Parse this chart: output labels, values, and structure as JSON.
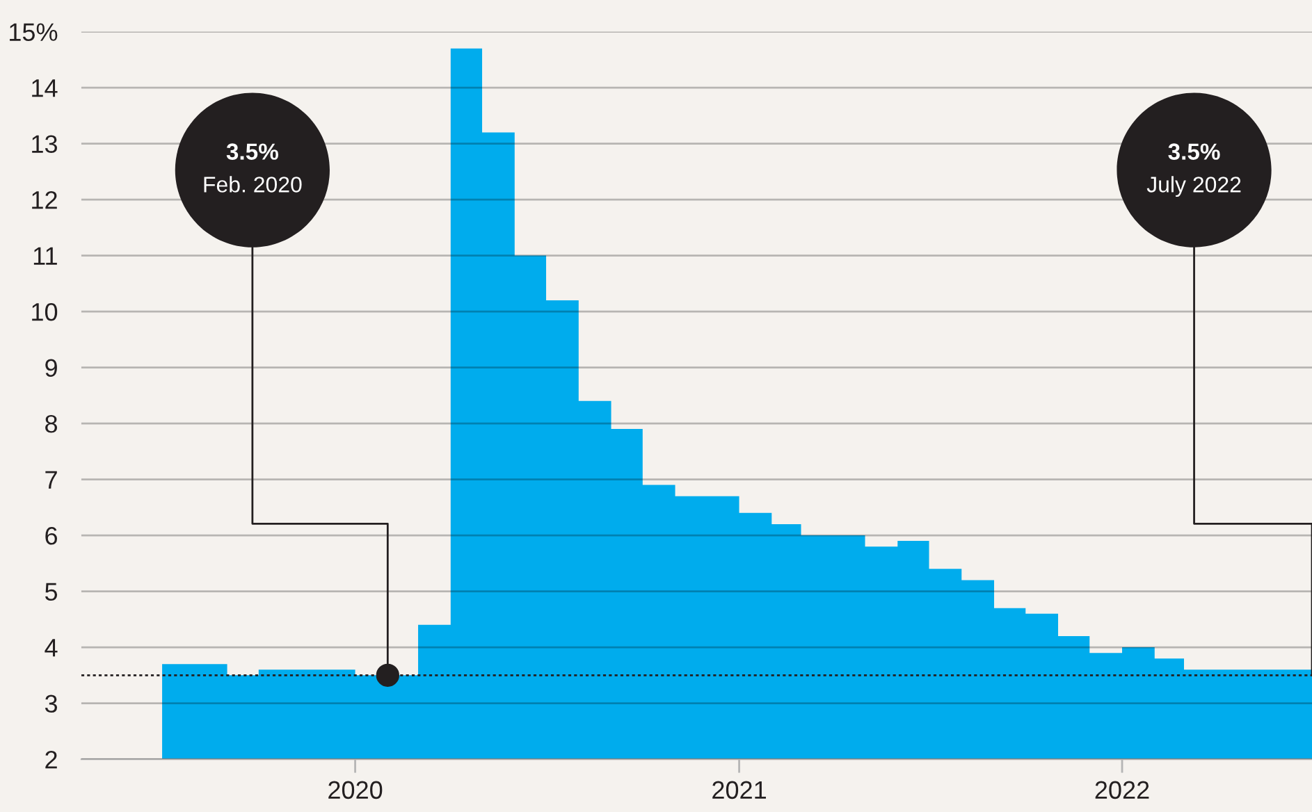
{
  "chart_data": {
    "type": "area",
    "x": [
      "2019-07",
      "2019-08",
      "2019-09",
      "2019-10",
      "2019-11",
      "2019-12",
      "2020-01",
      "2020-02",
      "2020-03",
      "2020-04",
      "2020-05",
      "2020-06",
      "2020-07",
      "2020-08",
      "2020-09",
      "2020-10",
      "2020-11",
      "2020-12",
      "2021-01",
      "2021-02",
      "2021-03",
      "2021-04",
      "2021-05",
      "2021-06",
      "2021-07",
      "2021-08",
      "2021-09",
      "2021-10",
      "2021-11",
      "2021-12",
      "2022-01",
      "2022-02",
      "2022-03",
      "2022-04",
      "2022-05",
      "2022-06",
      "2022-07"
    ],
    "values": [
      3.7,
      3.7,
      3.5,
      3.6,
      3.6,
      3.6,
      3.5,
      3.5,
      4.4,
      14.7,
      13.2,
      11.0,
      10.2,
      8.4,
      7.9,
      6.9,
      6.7,
      6.7,
      6.4,
      6.2,
      6.0,
      6.0,
      5.8,
      5.9,
      5.4,
      5.2,
      4.7,
      4.6,
      4.2,
      3.9,
      4.0,
      3.8,
      3.6,
      3.6,
      3.6,
      3.6,
      3.5
    ],
    "color": "#00aced",
    "xlim": [
      "2019-04-15",
      "2022-07-01"
    ],
    "xticks": [
      {
        "value": "2020-01-01",
        "label": "2020"
      },
      {
        "value": "2021-01-01",
        "label": "2021"
      },
      {
        "value": "2022-01-01",
        "label": "2022"
      }
    ],
    "ylim": [
      2,
      15
    ],
    "yticks": [
      2,
      3,
      4,
      5,
      6,
      7,
      8,
      9,
      10,
      11,
      12,
      13,
      14,
      {
        "value": 15,
        "label": "15%"
      }
    ],
    "grid": "y",
    "ref_lines": [
      {
        "axis": "y",
        "value": 3.5,
        "color": "#231f20",
        "line_style": "dotted"
      }
    ],
    "annotations": [
      {
        "text": "3.5%\nFeb. 2020",
        "x": "2020-02",
        "y": 3.5
      },
      {
        "text": "3.5%\nJuly 2022",
        "x": "2022-07",
        "y": 3.5
      }
    ]
  }
}
